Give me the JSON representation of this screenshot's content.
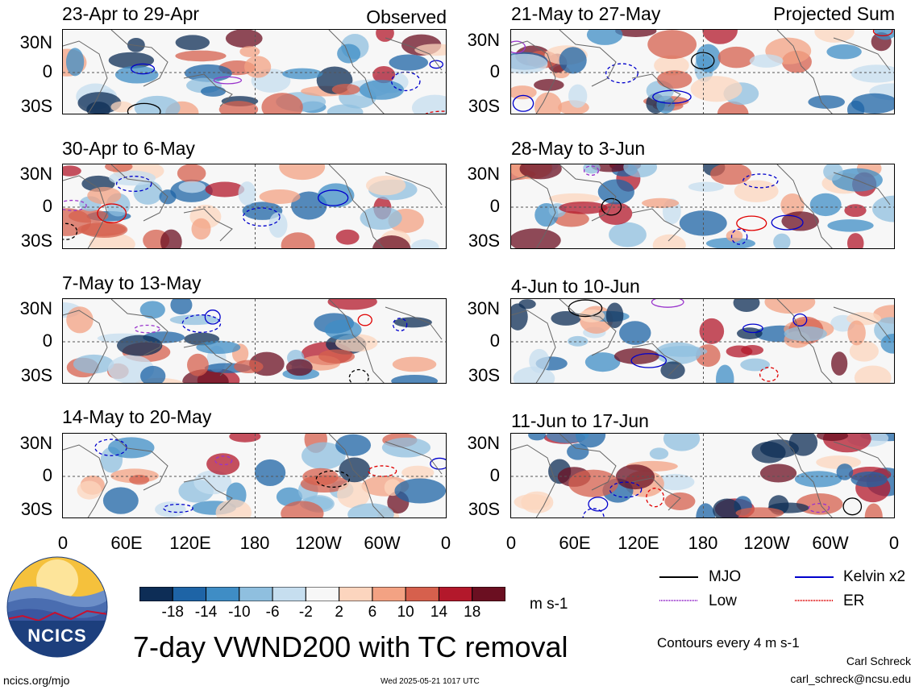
{
  "panels": {
    "observed": [
      {
        "label": "23-Apr to 29-Apr"
      },
      {
        "label": "30-Apr to 6-May"
      },
      {
        "label": "7-May to 13-May"
      },
      {
        "label": "14-May to 20-May"
      }
    ],
    "projected": [
      {
        "label": "21-May to 27-May"
      },
      {
        "label": "28-May to 3-Jun"
      },
      {
        "label": "4-Jun to 10-Jun"
      },
      {
        "label": "11-Jun to 17-Jun"
      }
    ]
  },
  "column_titles": {
    "observed": "Observed",
    "projected": "Projected Sum"
  },
  "lat_ticks": [
    "30N",
    "0",
    "30S"
  ],
  "lon_ticks": [
    "0",
    "60E",
    "120E",
    "180",
    "120W",
    "60W",
    "0"
  ],
  "chart_data": {
    "type": "heatmap",
    "title": "7-day VWND200 with TC removal",
    "variable": "VWND200",
    "units": "m s-1",
    "colorbar": {
      "ticks": [
        "-18",
        "-14",
        "-10",
        "-6",
        "-2",
        "2",
        "6",
        "10",
        "14",
        "18"
      ],
      "colors": [
        "#0d2d56",
        "#1e64a6",
        "#3f8dc5",
        "#8fbfdf",
        "#c6deef",
        "#f7f7f7",
        "#fcd5be",
        "#f3a283",
        "#d6604d",
        "#b3182b",
        "#6b0f21"
      ]
    },
    "contour_note": "Contours every 4 m s-1",
    "legend": [
      {
        "label": "MJO",
        "color": "#000000"
      },
      {
        "label": "Kelvin x2",
        "color": "#0000cc"
      },
      {
        "label": "Low",
        "color": "#9933cc"
      },
      {
        "label": "ER",
        "color": "#e00000"
      }
    ],
    "lat_range": [
      "40S",
      "40N"
    ],
    "lon_range": [
      "0",
      "360"
    ]
  },
  "footer": {
    "logo_text": "NCICS",
    "site": "ncics.org/mjo",
    "timestamp": "Wed 2025-05-21 1017 UTC",
    "author": "Carl Schreck",
    "email": "carl_schreck@ncsu.edu"
  }
}
